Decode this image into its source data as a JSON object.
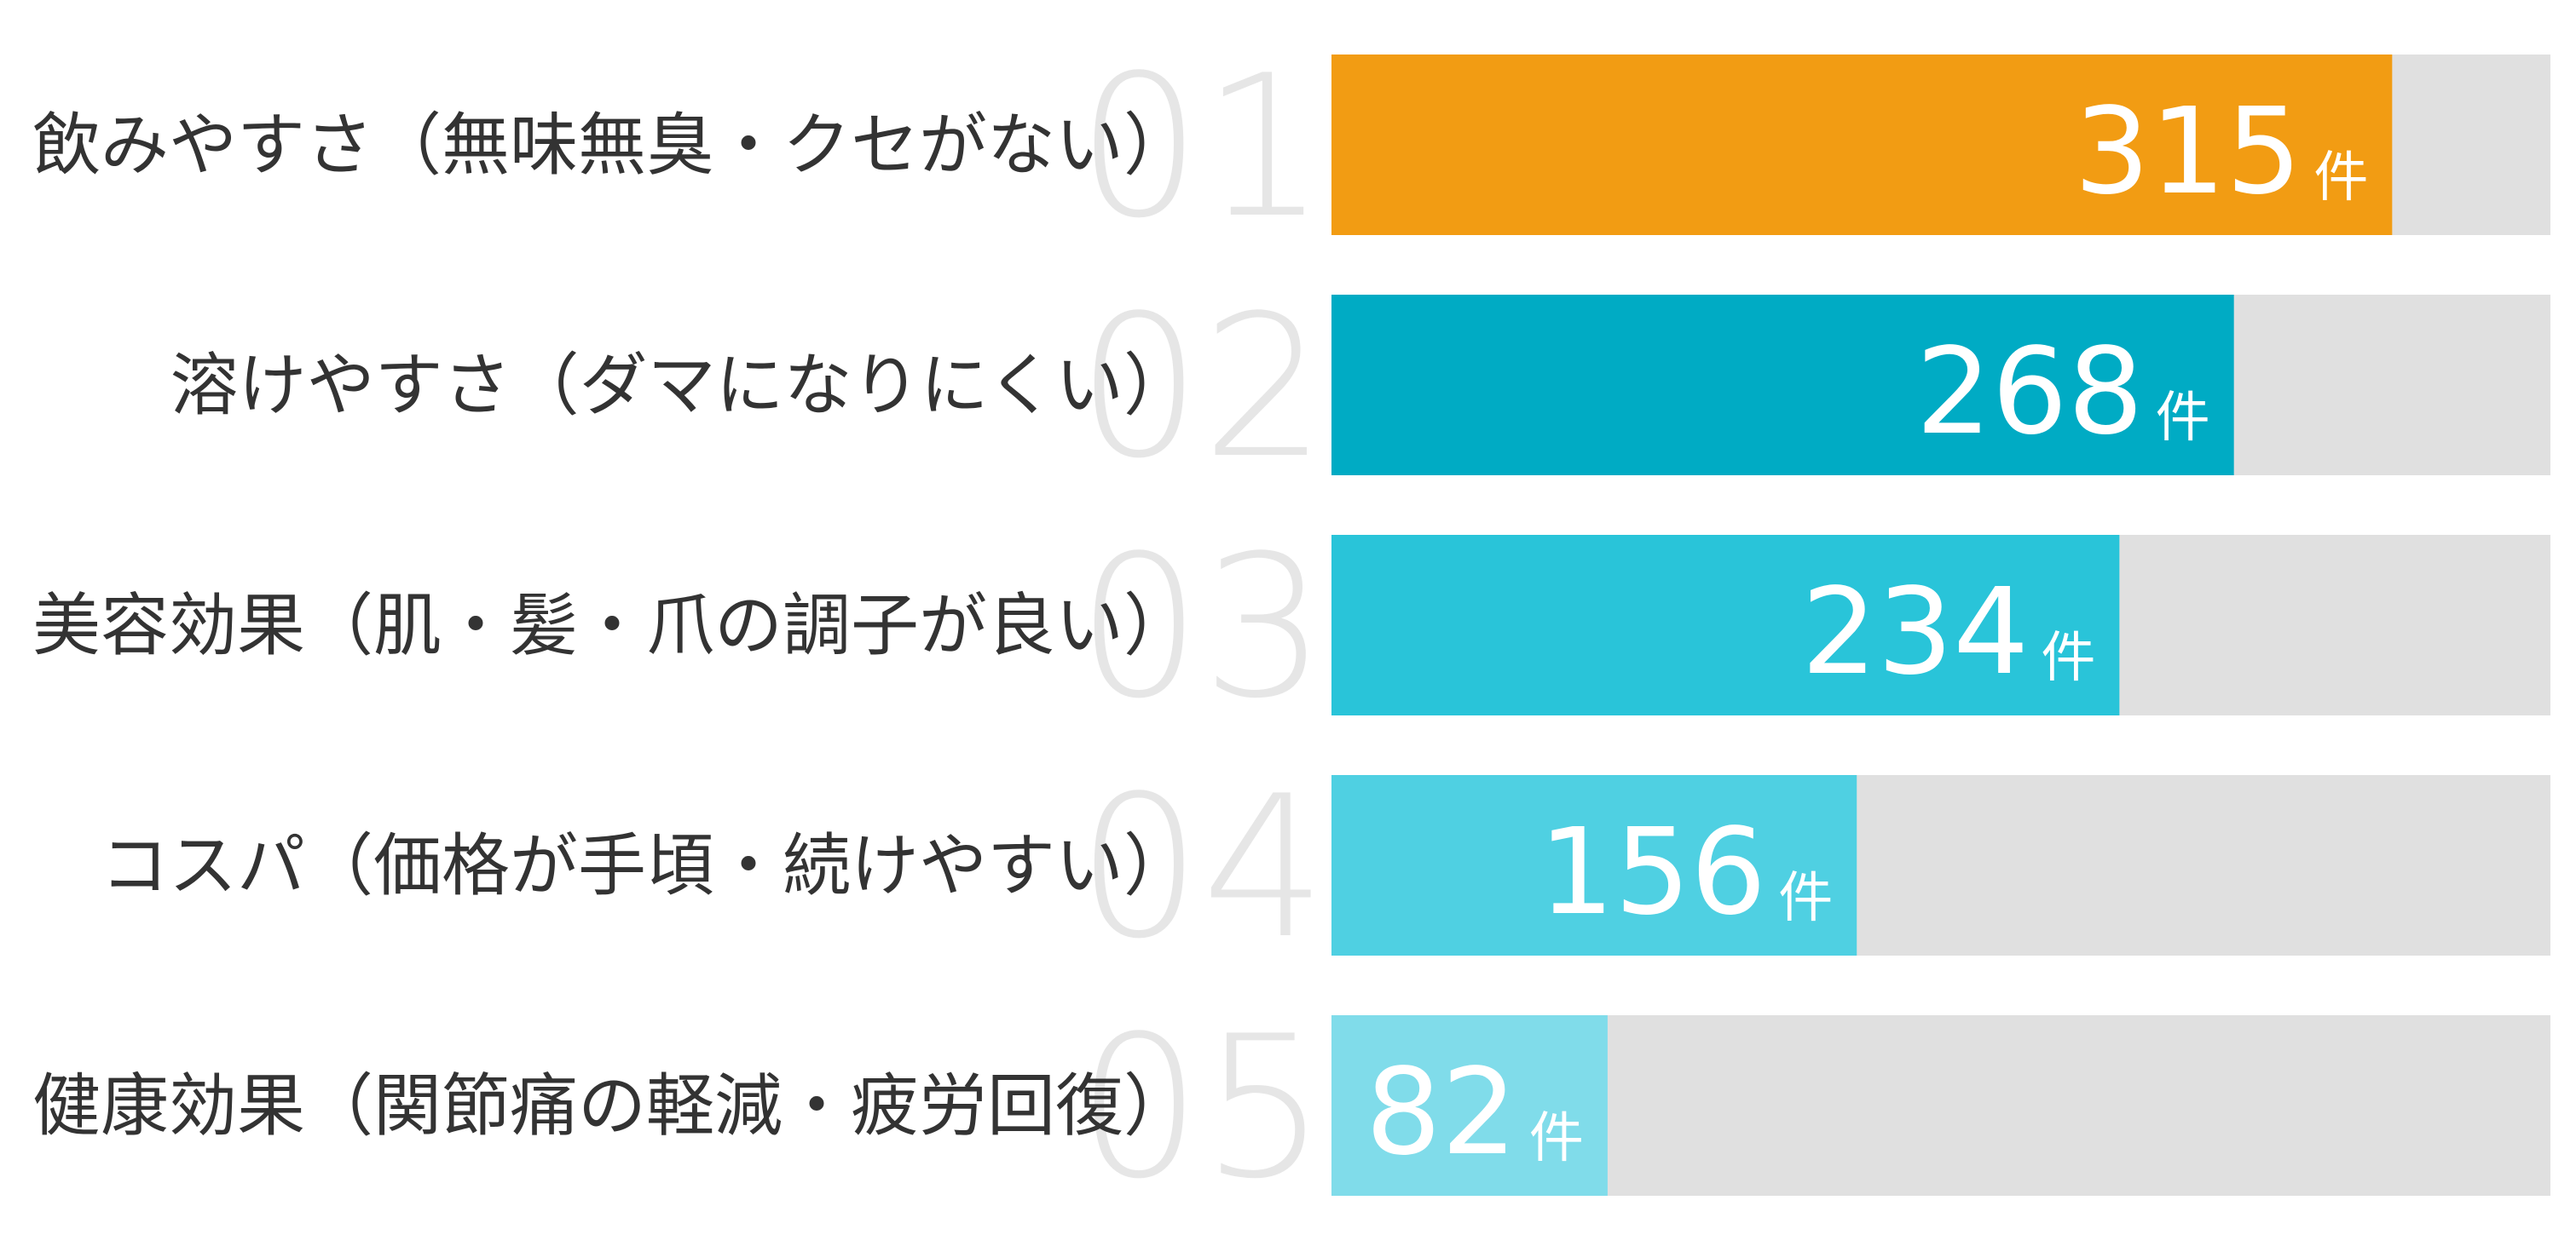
{
  "chart_data": {
    "type": "bar",
    "orientation": "horizontal",
    "categories": [
      "飲みやすさ（無味無臭・クセがない）",
      "溶けやすさ（ダマになりにくい）",
      "美容効果（肌・髪・爪の調子が良い）",
      "コスパ（価格が手頃・続けやすい）",
      "健康効果（関節痛の軽減・疲労回復）"
    ],
    "ranks": [
      "01",
      "02",
      "03",
      "04",
      "05"
    ],
    "values": [
      315,
      268,
      234,
      156,
      82
    ],
    "unit": "件",
    "xlim": [
      0,
      362
    ],
    "colors": [
      "#f29c13",
      "#00abc4",
      "#29c4d9",
      "#4fd0e2",
      "#80dcea"
    ],
    "track_color": "#e0e0e0",
    "rank_color": "#e6e6e6",
    "label_color": "#333333",
    "value_label_color": "#ffffff",
    "grid": false,
    "legend": "none"
  }
}
